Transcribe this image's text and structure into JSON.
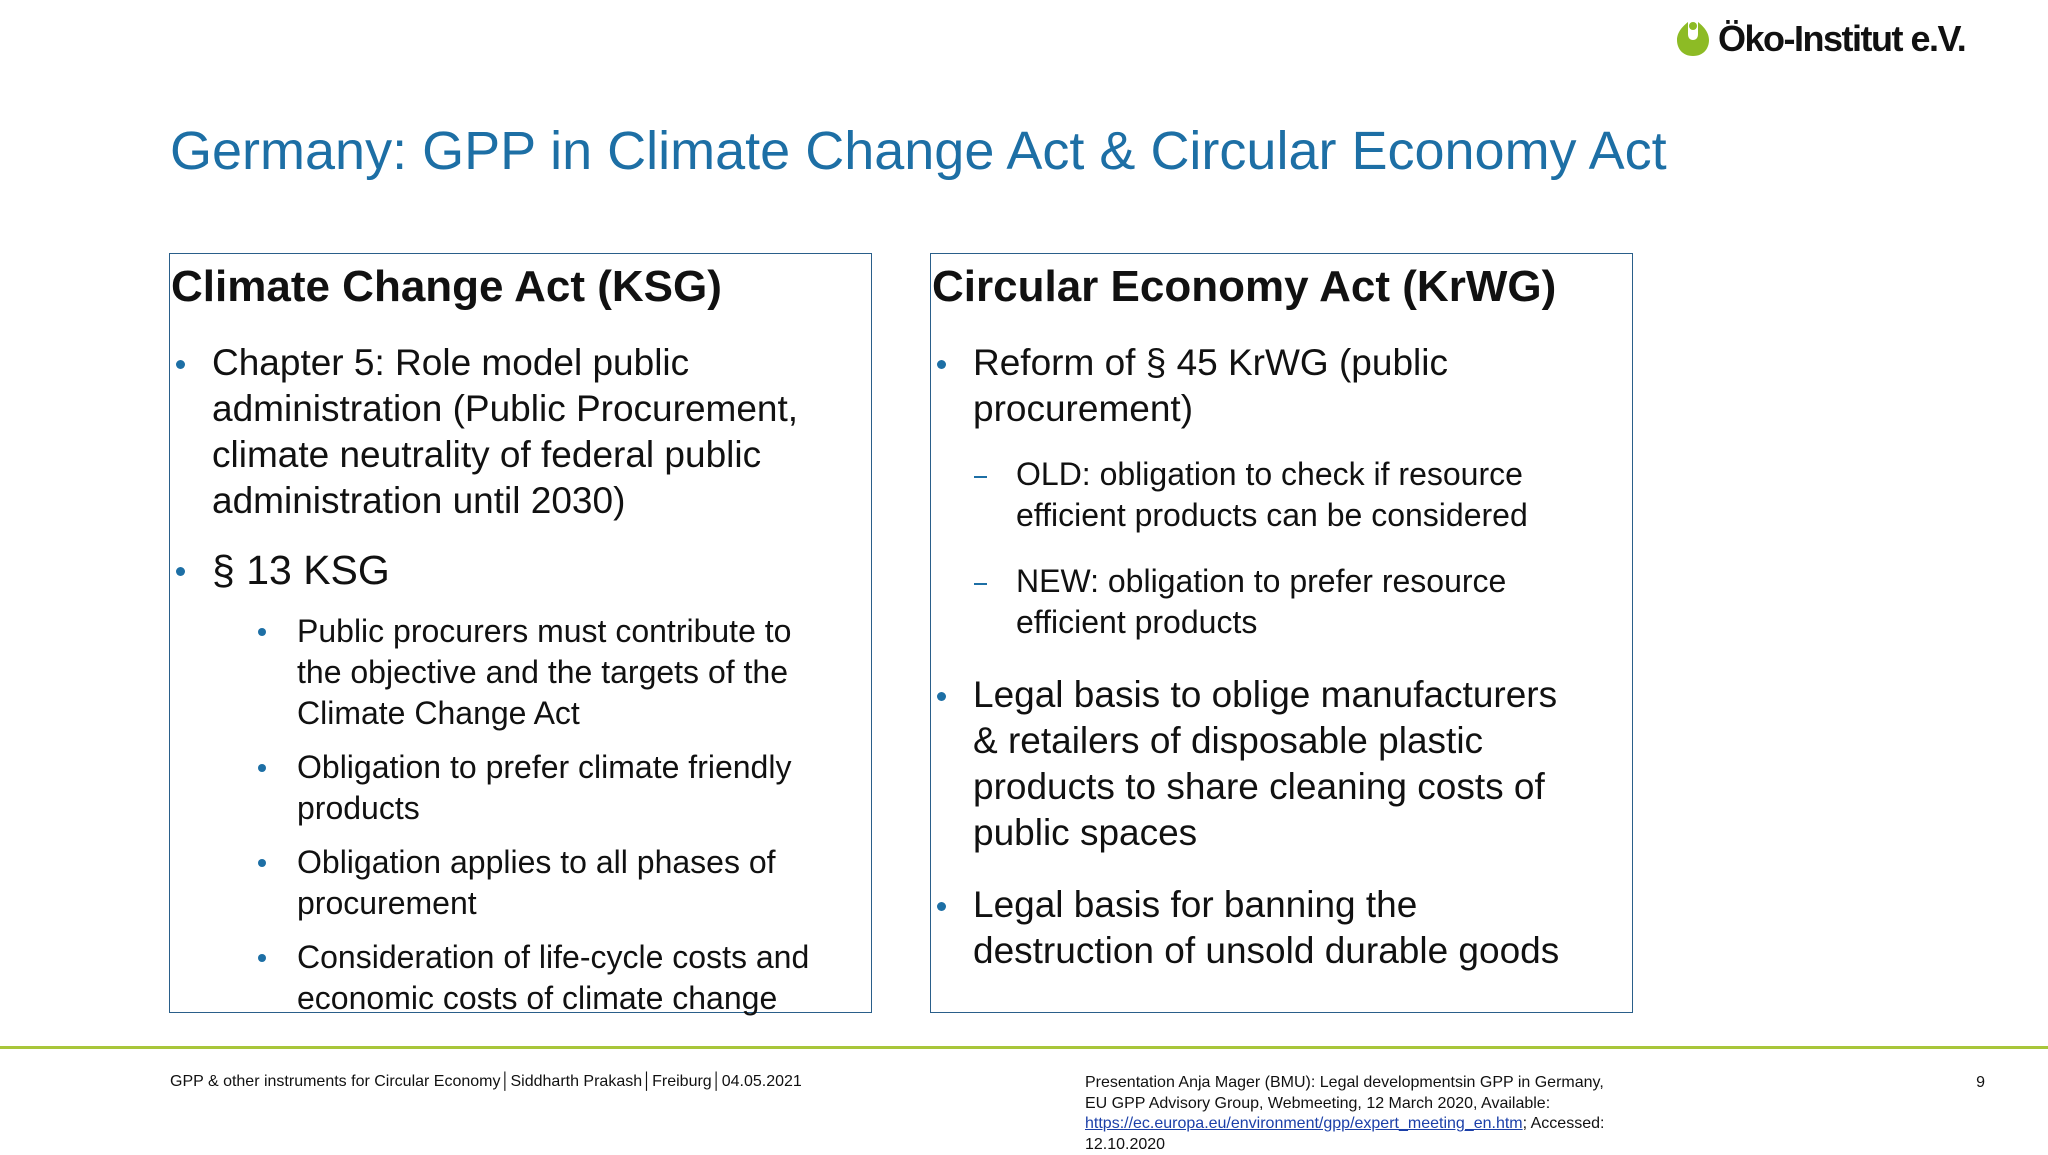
{
  "header": {
    "logo_text": "Öko-Institut e.V.",
    "title": "Germany: GPP in Climate Change Act & Circular Economy Act"
  },
  "left_box": {
    "heading": "Climate Change Act (KSG)",
    "items": [
      {
        "lines": [
          "Chapter 5: Role model public",
          "administration (Public Procurement,",
          "climate neutrality of federal public",
          "administration until 2030)"
        ]
      },
      {
        "lines": [
          "§ 13 KSG"
        ]
      }
    ],
    "subitems": [
      {
        "lines": [
          "Public procurers must contribute to",
          "the objective and the targets of the",
          "Climate Change Act"
        ]
      },
      {
        "lines": [
          "Obligation to prefer climate friendly",
          "products"
        ]
      },
      {
        "lines": [
          "Obligation applies to all phases of",
          "procurement"
        ]
      },
      {
        "lines": [
          "Consideration of life-cycle costs and",
          "economic costs of climate change"
        ]
      }
    ]
  },
  "right_box": {
    "heading": "Circular Economy Act (KrWG)",
    "items": [
      {
        "lines": [
          "Reform of § 45 KrWG (public",
          "procurement)"
        ]
      },
      {
        "lines": [
          "Legal basis to oblige manufacturers",
          "& retailers of disposable plastic",
          "products to share cleaning costs of",
          "public spaces"
        ]
      },
      {
        "lines": [
          "Legal basis for banning the",
          "destruction of unsold durable goods"
        ]
      }
    ],
    "subitems": [
      {
        "lines": [
          "OLD: obligation to check if resource",
          "efficient products can be considered"
        ]
      },
      {
        "lines": [
          "NEW: obligation to prefer resource",
          "efficient products"
        ]
      }
    ]
  },
  "footer": {
    "left_text": "GPP & other instruments for Circular Economy│Siddharth Prakash│Freiburg│04.05.2021",
    "source_line1": "Presentation Anja Mager (BMU): Legal developmentsin GPP in Germany,",
    "source_line2": "EU GPP Advisory Group, Webmeeting, 12 March 2020, Available:",
    "source_link": "https://ec.europa.eu/environment/gpp/expert_meeting_en.htm",
    "source_after_link": "; Accessed:",
    "source_line4": "12.10.2020",
    "page_number": "9"
  },
  "colors": {
    "title_blue": "#1d6fa5",
    "logo_green": "#8dbb25",
    "rule_green": "#a8c63a",
    "box_border": "#2a5f8a"
  },
  "icons": {
    "logo_mark": "green-leaf-drop-icon"
  }
}
